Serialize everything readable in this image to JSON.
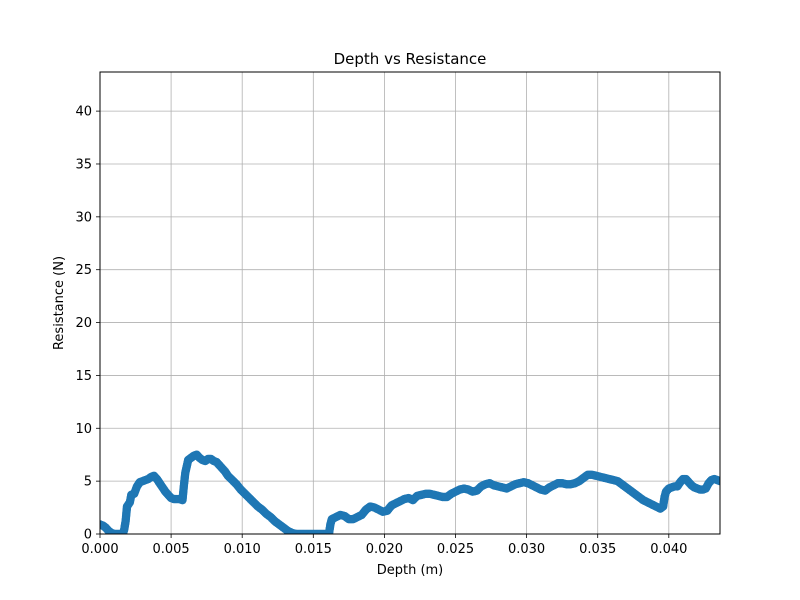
{
  "chart_data": {
    "type": "scatter",
    "title": "Depth vs Resistance",
    "xlabel": "Depth (m)",
    "ylabel": "Resistance (N)",
    "xlim": [
      0,
      0.0436
    ],
    "ylim": [
      0,
      43.7
    ],
    "x_ticks": [
      "0.000",
      "0.005",
      "0.010",
      "0.015",
      "0.020",
      "0.025",
      "0.030",
      "0.035",
      "0.040"
    ],
    "y_ticks": [
      "0",
      "5",
      "10",
      "15",
      "20",
      "25",
      "30",
      "35",
      "40"
    ],
    "grid": true,
    "marker_color": "#1f77b4",
    "series": [
      {
        "values_xy": [
          [
            0.0,
            0.9
          ],
          [
            0.0002,
            0.8
          ],
          [
            0.0004,
            0.6
          ],
          [
            0.0006,
            0.3
          ],
          [
            0.0008,
            0.1
          ],
          [
            0.001,
            0.0
          ],
          [
            0.0012,
            0.0
          ],
          [
            0.0014,
            0.0
          ],
          [
            0.0016,
            0.0
          ],
          [
            0.0017,
            0.4
          ],
          [
            0.0018,
            1.2
          ],
          [
            0.0019,
            2.6
          ],
          [
            0.0021,
            3.0
          ],
          [
            0.0022,
            3.7
          ],
          [
            0.0024,
            3.8
          ],
          [
            0.0026,
            4.5
          ],
          [
            0.0028,
            4.9
          ],
          [
            0.003,
            5.0
          ],
          [
            0.0032,
            5.1
          ],
          [
            0.0034,
            5.2
          ],
          [
            0.0036,
            5.4
          ],
          [
            0.0038,
            5.5
          ],
          [
            0.004,
            5.2
          ],
          [
            0.0042,
            4.8
          ],
          [
            0.0044,
            4.4
          ],
          [
            0.0046,
            4.0
          ],
          [
            0.0048,
            3.7
          ],
          [
            0.005,
            3.4
          ],
          [
            0.0052,
            3.3
          ],
          [
            0.0054,
            3.3
          ],
          [
            0.0056,
            3.3
          ],
          [
            0.0058,
            3.2
          ],
          [
            0.0059,
            4.6
          ],
          [
            0.006,
            5.8
          ],
          [
            0.0061,
            6.4
          ],
          [
            0.0062,
            7.0
          ],
          [
            0.0064,
            7.2
          ],
          [
            0.0066,
            7.4
          ],
          [
            0.0068,
            7.5
          ],
          [
            0.007,
            7.2
          ],
          [
            0.0072,
            7.0
          ],
          [
            0.0074,
            6.9
          ],
          [
            0.0076,
            7.1
          ],
          [
            0.0078,
            7.1
          ],
          [
            0.008,
            6.9
          ],
          [
            0.0082,
            6.8
          ],
          [
            0.0084,
            6.5
          ],
          [
            0.0086,
            6.2
          ],
          [
            0.0088,
            5.9
          ],
          [
            0.009,
            5.5
          ],
          [
            0.0093,
            5.1
          ],
          [
            0.0096,
            4.7
          ],
          [
            0.0099,
            4.2
          ],
          [
            0.0102,
            3.8
          ],
          [
            0.0105,
            3.4
          ],
          [
            0.0108,
            3.0
          ],
          [
            0.0111,
            2.6
          ],
          [
            0.0114,
            2.3
          ],
          [
            0.0117,
            1.9
          ],
          [
            0.012,
            1.6
          ],
          [
            0.0123,
            1.2
          ],
          [
            0.0126,
            0.9
          ],
          [
            0.0129,
            0.6
          ],
          [
            0.0132,
            0.3
          ],
          [
            0.0135,
            0.1
          ],
          [
            0.0138,
            0.0
          ],
          [
            0.0142,
            0.0
          ],
          [
            0.0146,
            0.0
          ],
          [
            0.015,
            0.0
          ],
          [
            0.0154,
            0.0
          ],
          [
            0.0158,
            0.0
          ],
          [
            0.0161,
            0.0
          ],
          [
            0.0162,
            0.9
          ],
          [
            0.0163,
            1.4
          ],
          [
            0.0166,
            1.6
          ],
          [
            0.0169,
            1.8
          ],
          [
            0.0172,
            1.7
          ],
          [
            0.0175,
            1.4
          ],
          [
            0.0178,
            1.4
          ],
          [
            0.0181,
            1.6
          ],
          [
            0.0184,
            1.8
          ],
          [
            0.0187,
            2.3
          ],
          [
            0.019,
            2.6
          ],
          [
            0.0193,
            2.5
          ],
          [
            0.0196,
            2.3
          ],
          [
            0.0199,
            2.1
          ],
          [
            0.0202,
            2.2
          ],
          [
            0.0205,
            2.7
          ],
          [
            0.0208,
            2.9
          ],
          [
            0.0211,
            3.1
          ],
          [
            0.0214,
            3.3
          ],
          [
            0.0217,
            3.4
          ],
          [
            0.022,
            3.2
          ],
          [
            0.0223,
            3.6
          ],
          [
            0.0226,
            3.7
          ],
          [
            0.0229,
            3.8
          ],
          [
            0.0232,
            3.8
          ],
          [
            0.0235,
            3.7
          ],
          [
            0.0238,
            3.6
          ],
          [
            0.0241,
            3.5
          ],
          [
            0.0244,
            3.5
          ],
          [
            0.0247,
            3.8
          ],
          [
            0.025,
            4.0
          ],
          [
            0.0253,
            4.2
          ],
          [
            0.0256,
            4.3
          ],
          [
            0.0259,
            4.2
          ],
          [
            0.0262,
            4.0
          ],
          [
            0.0265,
            4.1
          ],
          [
            0.0268,
            4.5
          ],
          [
            0.0271,
            4.7
          ],
          [
            0.0274,
            4.8
          ],
          [
            0.0277,
            4.6
          ],
          [
            0.028,
            4.5
          ],
          [
            0.0283,
            4.4
          ],
          [
            0.0286,
            4.3
          ],
          [
            0.0289,
            4.5
          ],
          [
            0.0292,
            4.7
          ],
          [
            0.0295,
            4.8
          ],
          [
            0.0298,
            4.9
          ],
          [
            0.0301,
            4.8
          ],
          [
            0.0304,
            4.6
          ],
          [
            0.0307,
            4.4
          ],
          [
            0.031,
            4.2
          ],
          [
            0.0313,
            4.1
          ],
          [
            0.0316,
            4.4
          ],
          [
            0.0319,
            4.6
          ],
          [
            0.0322,
            4.8
          ],
          [
            0.0325,
            4.8
          ],
          [
            0.0328,
            4.7
          ],
          [
            0.0331,
            4.7
          ],
          [
            0.0334,
            4.8
          ],
          [
            0.0337,
            5.0
          ],
          [
            0.034,
            5.3
          ],
          [
            0.0343,
            5.6
          ],
          [
            0.0346,
            5.6
          ],
          [
            0.0349,
            5.5
          ],
          [
            0.0352,
            5.4
          ],
          [
            0.0355,
            5.3
          ],
          [
            0.0358,
            5.2
          ],
          [
            0.0361,
            5.1
          ],
          [
            0.0364,
            5.0
          ],
          [
            0.0367,
            4.7
          ],
          [
            0.037,
            4.4
          ],
          [
            0.0373,
            4.1
          ],
          [
            0.0376,
            3.8
          ],
          [
            0.0379,
            3.5
          ],
          [
            0.0382,
            3.2
          ],
          [
            0.0385,
            3.0
          ],
          [
            0.0388,
            2.8
          ],
          [
            0.0391,
            2.6
          ],
          [
            0.0394,
            2.4
          ],
          [
            0.0396,
            2.6
          ],
          [
            0.0397,
            3.5
          ],
          [
            0.0398,
            4.0
          ],
          [
            0.04,
            4.3
          ],
          [
            0.0402,
            4.4
          ],
          [
            0.0404,
            4.5
          ],
          [
            0.0406,
            4.5
          ],
          [
            0.0408,
            4.9
          ],
          [
            0.041,
            5.2
          ],
          [
            0.0412,
            5.2
          ],
          [
            0.0414,
            4.9
          ],
          [
            0.0416,
            4.6
          ],
          [
            0.0418,
            4.4
          ],
          [
            0.042,
            4.3
          ],
          [
            0.0422,
            4.2
          ],
          [
            0.0424,
            4.2
          ],
          [
            0.0426,
            4.3
          ],
          [
            0.0428,
            4.8
          ],
          [
            0.043,
            5.1
          ],
          [
            0.0432,
            5.2
          ],
          [
            0.0434,
            5.1
          ],
          [
            0.0436,
            5.0
          ]
        ]
      }
    ]
  }
}
